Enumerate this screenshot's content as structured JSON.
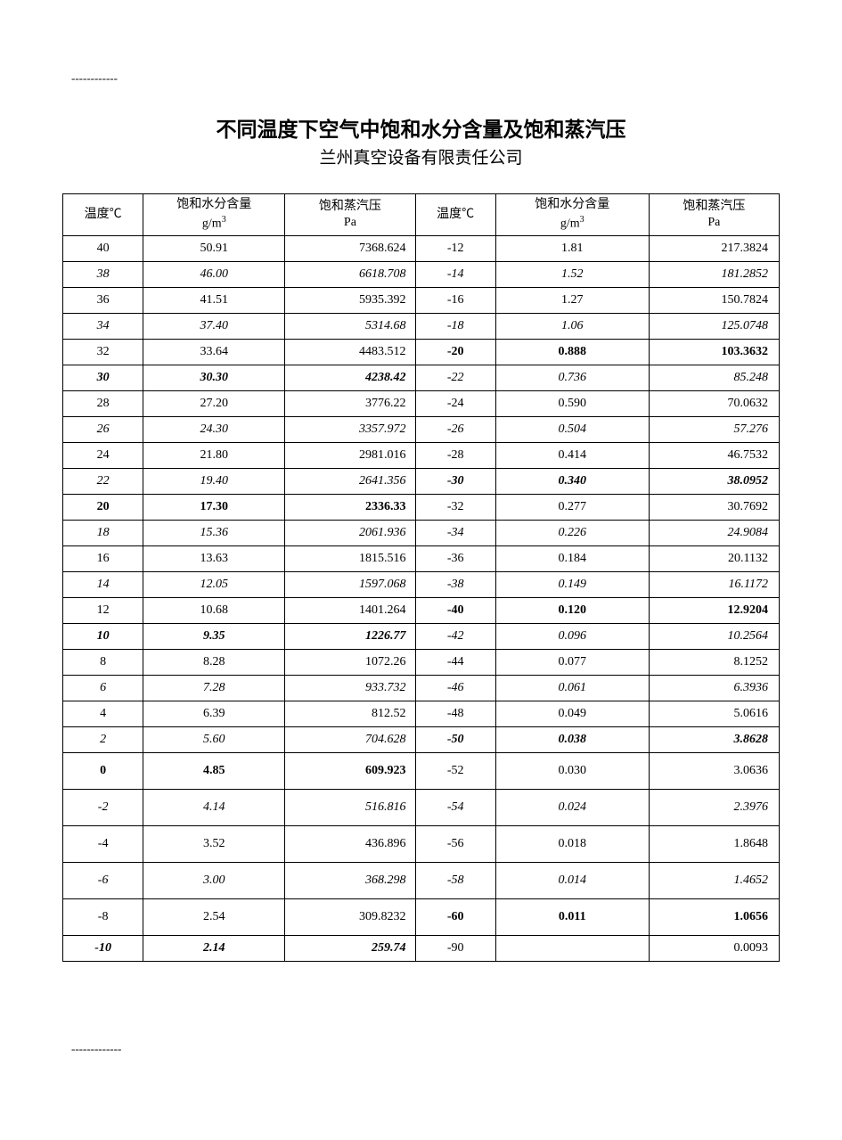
{
  "dash_top": "------------",
  "dash_bottom": "-------------",
  "title": "不同温度下空气中饱和水分含量及饱和蒸汽压",
  "subtitle": "兰州真空设备有限责任公司",
  "table": {
    "headers": [
      {
        "line1": "温度℃",
        "line2": ""
      },
      {
        "line1": "饱和水分含量",
        "line2": "g/m",
        "sup": "3"
      },
      {
        "line1": "饱和蒸汽压",
        "line2": "Pa"
      },
      {
        "line1": "温度℃",
        "line2": ""
      },
      {
        "line1": "饱和水分含量",
        "line2": "g/m",
        "sup": "3"
      },
      {
        "line1": "饱和蒸汽压",
        "line2": "Pa"
      }
    ],
    "col_widths_pct": [
      10.5,
      18.5,
      17,
      10.5,
      20,
      17
    ],
    "rows": [
      {
        "tall": false,
        "a": {
          "t": "40",
          "s": ""
        },
        "b": {
          "t": "50.91",
          "s": ""
        },
        "c": {
          "t": "7368.624",
          "s": ""
        },
        "d": {
          "t": "-12",
          "s": ""
        },
        "e": {
          "t": "1.81",
          "s": ""
        },
        "f": {
          "t": "217.3824",
          "s": ""
        }
      },
      {
        "tall": false,
        "a": {
          "t": "38",
          "s": "italic"
        },
        "b": {
          "t": "46.00",
          "s": "italic"
        },
        "c": {
          "t": "6618.708",
          "s": "italic"
        },
        "d": {
          "t": "-14",
          "s": "italic"
        },
        "e": {
          "t": "1.52",
          "s": "italic"
        },
        "f": {
          "t": "181.2852",
          "s": "italic"
        }
      },
      {
        "tall": false,
        "a": {
          "t": "36",
          "s": ""
        },
        "b": {
          "t": "41.51",
          "s": ""
        },
        "c": {
          "t": "5935.392",
          "s": ""
        },
        "d": {
          "t": "-16",
          "s": ""
        },
        "e": {
          "t": "1.27",
          "s": ""
        },
        "f": {
          "t": "150.7824",
          "s": ""
        }
      },
      {
        "tall": false,
        "a": {
          "t": "34",
          "s": "italic"
        },
        "b": {
          "t": "37.40",
          "s": "italic"
        },
        "c": {
          "t": "5314.68",
          "s": "italic"
        },
        "d": {
          "t": "-18",
          "s": "italic"
        },
        "e": {
          "t": "1.06",
          "s": "italic"
        },
        "f": {
          "t": "125.0748",
          "s": "italic"
        }
      },
      {
        "tall": false,
        "a": {
          "t": "32",
          "s": ""
        },
        "b": {
          "t": "33.64",
          "s": ""
        },
        "c": {
          "t": "4483.512",
          "s": ""
        },
        "d": {
          "t": "-20",
          "s": "bold"
        },
        "e": {
          "t": "0.888",
          "s": "bold"
        },
        "f": {
          "t": "103.3632",
          "s": "bold"
        }
      },
      {
        "tall": false,
        "a": {
          "t": "30",
          "s": "bolditalic"
        },
        "b": {
          "t": "30.30",
          "s": "bolditalic"
        },
        "c": {
          "t": "4238.42",
          "s": "bolditalic"
        },
        "d": {
          "t": "-22",
          "s": "italic"
        },
        "e": {
          "t": "0.736",
          "s": "italic"
        },
        "f": {
          "t": "85.248",
          "s": "italic"
        }
      },
      {
        "tall": false,
        "a": {
          "t": "28",
          "s": ""
        },
        "b": {
          "t": "27.20",
          "s": ""
        },
        "c": {
          "t": "3776.22",
          "s": ""
        },
        "d": {
          "t": "-24",
          "s": ""
        },
        "e": {
          "t": "0.590",
          "s": ""
        },
        "f": {
          "t": "70.0632",
          "s": ""
        }
      },
      {
        "tall": false,
        "a": {
          "t": "26",
          "s": "italic"
        },
        "b": {
          "t": "24.30",
          "s": "italic"
        },
        "c": {
          "t": "3357.972",
          "s": "italic"
        },
        "d": {
          "t": "-26",
          "s": "italic"
        },
        "e": {
          "t": "0.504",
          "s": "italic"
        },
        "f": {
          "t": "57.276",
          "s": "italic"
        }
      },
      {
        "tall": false,
        "a": {
          "t": "24",
          "s": ""
        },
        "b": {
          "t": "21.80",
          "s": ""
        },
        "c": {
          "t": "2981.016",
          "s": ""
        },
        "d": {
          "t": "-28",
          "s": ""
        },
        "e": {
          "t": "0.414",
          "s": ""
        },
        "f": {
          "t": "46.7532",
          "s": ""
        }
      },
      {
        "tall": false,
        "a": {
          "t": "22",
          "s": "italic"
        },
        "b": {
          "t": "19.40",
          "s": "italic"
        },
        "c": {
          "t": "2641.356",
          "s": "italic"
        },
        "d": {
          "t": "-30",
          "s": "bolditalic"
        },
        "e": {
          "t": "0.340",
          "s": "bolditalic"
        },
        "f": {
          "t": "38.0952",
          "s": "bolditalic"
        }
      },
      {
        "tall": false,
        "a": {
          "t": "20",
          "s": "bold"
        },
        "b": {
          "t": "17.30",
          "s": "bold"
        },
        "c": {
          "t": "2336.33",
          "s": "bold"
        },
        "d": {
          "t": "-32",
          "s": ""
        },
        "e": {
          "t": "0.277",
          "s": ""
        },
        "f": {
          "t": "30.7692",
          "s": ""
        }
      },
      {
        "tall": false,
        "a": {
          "t": "18",
          "s": "italic"
        },
        "b": {
          "t": "15.36",
          "s": "italic"
        },
        "c": {
          "t": "2061.936",
          "s": "italic"
        },
        "d": {
          "t": "-34",
          "s": "italic"
        },
        "e": {
          "t": "0.226",
          "s": "italic"
        },
        "f": {
          "t": "24.9084",
          "s": "italic"
        }
      },
      {
        "tall": false,
        "a": {
          "t": "16",
          "s": ""
        },
        "b": {
          "t": "13.63",
          "s": ""
        },
        "c": {
          "t": "1815.516",
          "s": ""
        },
        "d": {
          "t": "-36",
          "s": ""
        },
        "e": {
          "t": "0.184",
          "s": ""
        },
        "f": {
          "t": "20.1132",
          "s": ""
        }
      },
      {
        "tall": false,
        "a": {
          "t": "14",
          "s": "italic"
        },
        "b": {
          "t": "12.05",
          "s": "italic"
        },
        "c": {
          "t": "1597.068",
          "s": "italic"
        },
        "d": {
          "t": "-38",
          "s": "italic"
        },
        "e": {
          "t": "0.149",
          "s": "italic"
        },
        "f": {
          "t": "16.1172",
          "s": "italic"
        }
      },
      {
        "tall": false,
        "a": {
          "t": "12",
          "s": ""
        },
        "b": {
          "t": "10.68",
          "s": ""
        },
        "c": {
          "t": "1401.264",
          "s": ""
        },
        "d": {
          "t": "-40",
          "s": "bold"
        },
        "e": {
          "t": "0.120",
          "s": "bold"
        },
        "f": {
          "t": "12.9204",
          "s": "bold"
        }
      },
      {
        "tall": false,
        "a": {
          "t": "10",
          "s": "bolditalic"
        },
        "b": {
          "t": "9.35",
          "s": "bolditalic"
        },
        "c": {
          "t": "1226.77",
          "s": "bolditalic"
        },
        "d": {
          "t": "-42",
          "s": "italic"
        },
        "e": {
          "t": "0.096",
          "s": "italic"
        },
        "f": {
          "t": "10.2564",
          "s": "italic"
        }
      },
      {
        "tall": false,
        "a": {
          "t": "8",
          "s": ""
        },
        "b": {
          "t": "8.28",
          "s": ""
        },
        "c": {
          "t": "1072.26",
          "s": ""
        },
        "d": {
          "t": "-44",
          "s": ""
        },
        "e": {
          "t": "0.077",
          "s": ""
        },
        "f": {
          "t": "8.1252",
          "s": ""
        }
      },
      {
        "tall": false,
        "a": {
          "t": "6",
          "s": "italic"
        },
        "b": {
          "t": "7.28",
          "s": "italic"
        },
        "c": {
          "t": "933.732",
          "s": "italic"
        },
        "d": {
          "t": "-46",
          "s": "italic"
        },
        "e": {
          "t": "0.061",
          "s": "italic"
        },
        "f": {
          "t": "6.3936",
          "s": "italic"
        }
      },
      {
        "tall": false,
        "a": {
          "t": "4",
          "s": ""
        },
        "b": {
          "t": "6.39",
          "s": ""
        },
        "c": {
          "t": "812.52",
          "s": ""
        },
        "d": {
          "t": "-48",
          "s": ""
        },
        "e": {
          "t": "0.049",
          "s": ""
        },
        "f": {
          "t": "5.0616",
          "s": ""
        }
      },
      {
        "tall": false,
        "a": {
          "t": "2",
          "s": "italic"
        },
        "b": {
          "t": "5.60",
          "s": "italic"
        },
        "c": {
          "t": "704.628",
          "s": "italic"
        },
        "d": {
          "t": "-50",
          "s": "bolditalic"
        },
        "e": {
          "t": "0.038",
          "s": "bolditalic"
        },
        "f": {
          "t": "3.8628",
          "s": "bolditalic"
        }
      },
      {
        "tall": true,
        "a": {
          "t": "0",
          "s": "bold"
        },
        "b": {
          "t": "4.85",
          "s": "bold"
        },
        "c": {
          "t": "609.923",
          "s": "bold"
        },
        "d": {
          "t": "-52",
          "s": ""
        },
        "e": {
          "t": "0.030",
          "s": ""
        },
        "f": {
          "t": "3.0636",
          "s": ""
        }
      },
      {
        "tall": true,
        "a": {
          "t": "-2",
          "s": "italic"
        },
        "b": {
          "t": "4.14",
          "s": "italic"
        },
        "c": {
          "t": "516.816",
          "s": "italic"
        },
        "d": {
          "t": "-54",
          "s": "italic"
        },
        "e": {
          "t": "0.024",
          "s": "italic"
        },
        "f": {
          "t": "2.3976",
          "s": "italic"
        }
      },
      {
        "tall": true,
        "a": {
          "t": "-4",
          "s": ""
        },
        "b": {
          "t": "3.52",
          "s": ""
        },
        "c": {
          "t": "436.896",
          "s": ""
        },
        "d": {
          "t": "-56",
          "s": ""
        },
        "e": {
          "t": "0.018",
          "s": ""
        },
        "f": {
          "t": "1.8648",
          "s": ""
        }
      },
      {
        "tall": true,
        "a": {
          "t": "-6",
          "s": "italic"
        },
        "b": {
          "t": "3.00",
          "s": "italic"
        },
        "c": {
          "t": "368.298",
          "s": "italic"
        },
        "d": {
          "t": "-58",
          "s": "italic"
        },
        "e": {
          "t": "0.014",
          "s": "italic"
        },
        "f": {
          "t": "1.4652",
          "s": "italic"
        }
      },
      {
        "tall": true,
        "a": {
          "t": "-8",
          "s": ""
        },
        "b": {
          "t": "2.54",
          "s": ""
        },
        "c": {
          "t": "309.8232",
          "s": ""
        },
        "d": {
          "t": "-60",
          "s": "bold"
        },
        "e": {
          "t": "0.011",
          "s": "bold"
        },
        "f": {
          "t": "1.0656",
          "s": "bold"
        }
      },
      {
        "tall": false,
        "a": {
          "t": "-10",
          "s": "bolditalic"
        },
        "b": {
          "t": "2.14",
          "s": "bolditalic"
        },
        "c": {
          "t": "259.74",
          "s": "bolditalic"
        },
        "d": {
          "t": "-90",
          "s": ""
        },
        "e": {
          "t": "",
          "s": ""
        },
        "f": {
          "t": "0.0093",
          "s": ""
        }
      }
    ]
  }
}
